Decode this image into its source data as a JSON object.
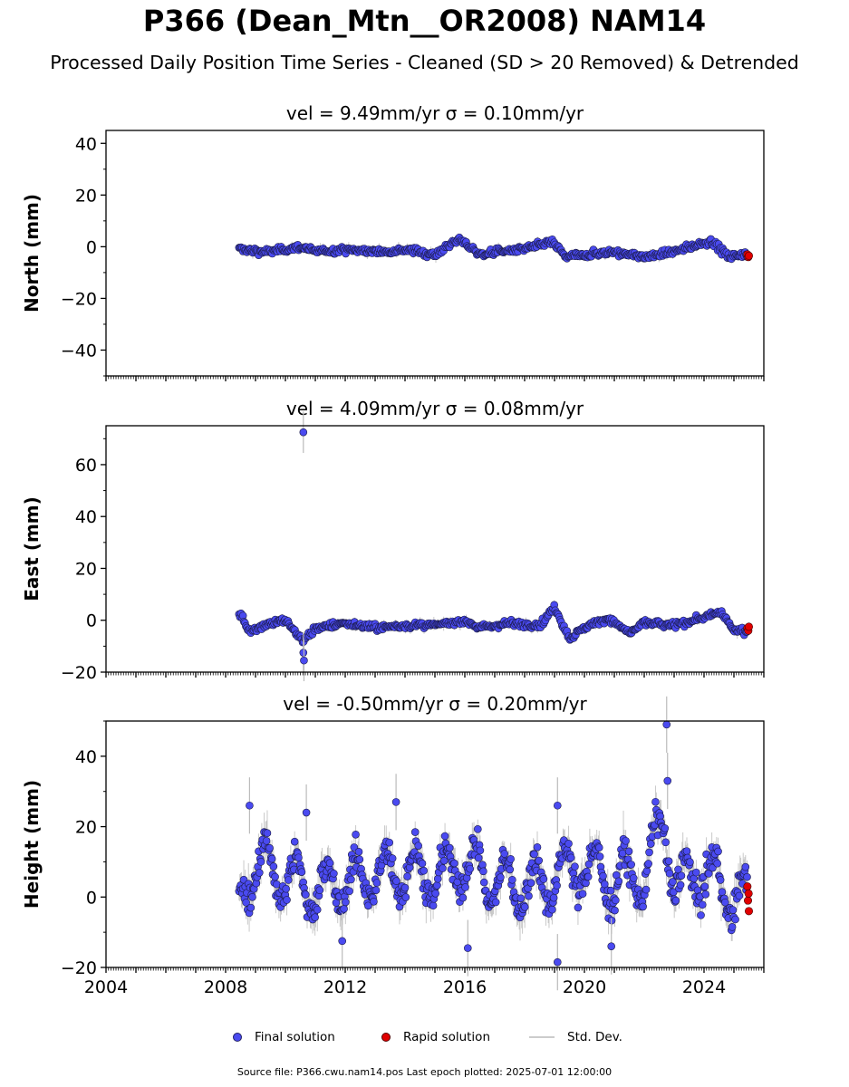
{
  "title": "P366 (Dean_Mtn__OR2008) NAM14",
  "subtitle": "Processed Daily Position Time Series - Cleaned (SD > 20 Removed) & Detrended",
  "legend": {
    "final": "Final solution",
    "rapid": "Rapid solution",
    "std": "Std. Dev."
  },
  "source": "Source file: P366.cwu.nam14.pos  Last epoch plotted: 2025-07-01 12:00:00",
  "colors": {
    "final": "#4a4af0",
    "rapid": "#e00000",
    "std": "#bbbbbb"
  },
  "chart_data": [
    {
      "type": "scatter",
      "component": "north",
      "title": "vel = 9.49mm/yr   σ = 0.10mm/yr",
      "ylabel": "North (mm)",
      "xlim": [
        2004.0,
        2026.0
      ],
      "ylim": [
        -50,
        45
      ],
      "yticks": [
        -40,
        -20,
        0,
        20,
        40
      ],
      "xticks": [
        2004,
        2008,
        2012,
        2016,
        2020,
        2024
      ],
      "data_start": 2008.45,
      "data_end": 2025.5,
      "series": [
        {
          "name": "Final solution",
          "x": [
            2008.5,
            2009.5,
            2010.0,
            2010.5,
            2011.0,
            2012.0,
            2013.0,
            2014.0,
            2015.0,
            2015.8,
            2016.5,
            2017.0,
            2018.0,
            2018.9,
            2019.4,
            2020.0,
            2021.0,
            2022.0,
            2023.0,
            2023.8,
            2024.3,
            2024.8,
            2025.2
          ],
          "y": [
            -1,
            -2,
            -1,
            0,
            -2,
            -1,
            -2,
            -1,
            -3,
            3,
            -3,
            -2,
            -1,
            2,
            -4,
            -3,
            -2,
            -4,
            -2,
            1,
            2,
            -4,
            -3
          ]
        },
        {
          "name": "Rapid solution",
          "x": [
            2025.45,
            2025.48,
            2025.5
          ],
          "y": [
            -3,
            -4,
            -3.5
          ]
        }
      ]
    },
    {
      "type": "scatter",
      "component": "east",
      "title": "vel = 4.09mm/yr   σ = 0.08mm/yr",
      "ylabel": "East (mm)",
      "xlim": [
        2004.0,
        2026.0
      ],
      "ylim": [
        -20,
        75
      ],
      "yticks": [
        -20,
        0,
        20,
        40,
        60
      ],
      "xticks": [
        2004,
        2008,
        2012,
        2016,
        2020,
        2024
      ],
      "data_start": 2008.45,
      "data_end": 2025.5,
      "series": [
        {
          "name": "Final solution",
          "x": [
            2008.5,
            2008.8,
            2009.5,
            2010.0,
            2010.6,
            2011.0,
            2012.0,
            2013.0,
            2014.0,
            2015.0,
            2016.0,
            2016.5,
            2017.5,
            2018.5,
            2019.0,
            2019.5,
            2020.0,
            2020.8,
            2021.5,
            2022.0,
            2023.0,
            2024.0,
            2024.6,
            2025.0
          ],
          "y": [
            2,
            -4,
            -1,
            0,
            -8,
            -3,
            -1,
            -3,
            -2,
            -2,
            0,
            -3,
            -1,
            -2,
            5,
            -7,
            -3,
            1,
            -5,
            -1,
            -2,
            1,
            3,
            -4
          ]
        },
        {
          "name": "Rapid solution",
          "x": [
            2025.45,
            2025.48,
            2025.5
          ],
          "y": [
            -3,
            -4,
            -2.5
          ]
        }
      ],
      "outliers": [
        {
          "x": 2010.6,
          "y": 72.5
        },
        {
          "x": 2010.6,
          "y": -12.5
        },
        {
          "x": 2010.62,
          "y": -15.5
        }
      ]
    },
    {
      "type": "scatter",
      "component": "height",
      "title": "vel = -0.50mm/yr   σ = 0.20mm/yr",
      "ylabel": "Height (mm)",
      "xlim": [
        2004.0,
        2026.0
      ],
      "ylim": [
        -20,
        50
      ],
      "yticks": [
        -20,
        0,
        20,
        40
      ],
      "xticks": [
        2004,
        2008,
        2012,
        2016,
        2020,
        2024
      ],
      "data_start": 2008.45,
      "data_end": 2025.5,
      "seasonal_amplitude": 7,
      "series": [
        {
          "name": "Final solution",
          "x": [
            2008.5,
            2009.0,
            2010.0,
            2011.0,
            2012.0,
            2013.0,
            2014.0,
            2015.0,
            2016.0,
            2017.0,
            2018.0,
            2019.0,
            2020.0,
            2021.0,
            2022.0,
            2022.7,
            2023.0,
            2024.0,
            2025.0
          ],
          "y": [
            0,
            10,
            5,
            2,
            4,
            6,
            8,
            5,
            10,
            4,
            3,
            5,
            9,
            4,
            6,
            22,
            3,
            7,
            0
          ]
        },
        {
          "name": "Rapid solution",
          "x": [
            2025.45,
            2025.47,
            2025.49,
            2025.5
          ],
          "y": [
            3,
            -1,
            1,
            -4
          ]
        }
      ],
      "outliers": [
        {
          "x": 2008.8,
          "y": 26
        },
        {
          "x": 2010.7,
          "y": 24
        },
        {
          "x": 2013.7,
          "y": 27
        },
        {
          "x": 2019.1,
          "y": 26
        },
        {
          "x": 2022.75,
          "y": 49
        },
        {
          "x": 2022.78,
          "y": 33
        },
        {
          "x": 2019.1,
          "y": -18.5
        },
        {
          "x": 2011.9,
          "y": -12.5
        },
        {
          "x": 2016.1,
          "y": -14.5
        },
        {
          "x": 2020.9,
          "y": -14
        }
      ]
    }
  ]
}
